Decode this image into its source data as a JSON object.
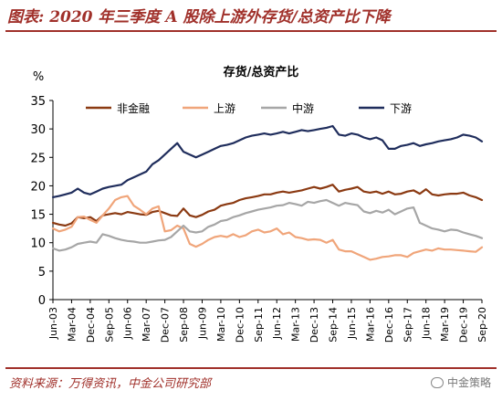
{
  "header": {
    "title": "图表: 2020 年三季度 A 股除上游外存货/总资产比下降"
  },
  "footer": {
    "source": "资料来源：万得资讯，中金公司研究部",
    "brand": "中金策略"
  },
  "icons": {
    "brand": "wechat-icon"
  },
  "colors": {
    "accent": "#a0302a"
  },
  "chart_data": {
    "type": "line",
    "title": "存货/总资产比",
    "ylabel": "%",
    "ylim": [
      0,
      35
    ],
    "yticks": [
      0,
      5,
      10,
      15,
      20,
      25,
      30,
      35
    ],
    "grid": false,
    "legend_position": "top",
    "x_tick_labels": [
      "Jun-03",
      "Mar-04",
      "Dec-04",
      "Sep-05",
      "Jun-06",
      "Mar-07",
      "Dec-07",
      "Sep-08",
      "Jun-09",
      "Mar-10",
      "Dec-10",
      "Sep-11",
      "Jun-12",
      "Mar-13",
      "Dec-13",
      "Sep-14",
      "Jun-15",
      "Mar-16",
      "Dec-16",
      "Sep-17",
      "Jun-18",
      "Mar-19",
      "Dec-19",
      "Sep-20"
    ],
    "x": [
      "Jun-03",
      "Sep-03",
      "Dec-03",
      "Mar-04",
      "Jun-04",
      "Sep-04",
      "Dec-04",
      "Mar-05",
      "Jun-05",
      "Sep-05",
      "Dec-05",
      "Mar-06",
      "Jun-06",
      "Sep-06",
      "Dec-06",
      "Mar-07",
      "Jun-07",
      "Sep-07",
      "Dec-07",
      "Mar-08",
      "Jun-08",
      "Sep-08",
      "Dec-08",
      "Mar-09",
      "Jun-09",
      "Sep-09",
      "Dec-09",
      "Mar-10",
      "Jun-10",
      "Sep-10",
      "Dec-10",
      "Mar-11",
      "Jun-11",
      "Sep-11",
      "Dec-11",
      "Mar-12",
      "Jun-12",
      "Sep-12",
      "Dec-12",
      "Mar-13",
      "Jun-13",
      "Sep-13",
      "Dec-13",
      "Mar-14",
      "Jun-14",
      "Sep-14",
      "Dec-14",
      "Mar-15",
      "Jun-15",
      "Sep-15",
      "Dec-15",
      "Mar-16",
      "Jun-16",
      "Sep-16",
      "Dec-16",
      "Mar-17",
      "Jun-17",
      "Sep-17",
      "Dec-17",
      "Mar-18",
      "Jun-18",
      "Sep-18",
      "Dec-18",
      "Mar-19",
      "Jun-19",
      "Sep-19",
      "Dec-19",
      "Mar-20",
      "Jun-20",
      "Sep-20"
    ],
    "series": [
      {
        "name": "非金融",
        "color": "#8b3a12",
        "values": [
          13.5,
          13.2,
          13.0,
          13.4,
          14.5,
          14.3,
          14.5,
          13.8,
          14.8,
          15.0,
          15.2,
          15.0,
          15.4,
          15.2,
          15.0,
          14.9,
          15.4,
          15.6,
          15.2,
          14.8,
          14.7,
          16.0,
          14.8,
          14.5,
          14.9,
          15.5,
          15.8,
          16.5,
          16.8,
          17.0,
          17.5,
          17.8,
          18.0,
          18.2,
          18.5,
          18.5,
          18.8,
          19.0,
          18.8,
          19.0,
          19.2,
          19.5,
          19.8,
          19.5,
          19.8,
          20.2,
          19.0,
          19.3,
          19.5,
          19.8,
          19.0,
          18.8,
          19.0,
          18.6,
          19.0,
          18.5,
          18.6,
          19.0,
          19.2,
          18.6,
          19.4,
          18.5,
          18.3,
          18.5,
          18.6,
          18.6,
          18.8,
          18.3,
          18.0,
          17.5
        ]
      },
      {
        "name": "上游",
        "color": "#f0a57a",
        "values": [
          12.5,
          12.0,
          12.3,
          12.8,
          14.5,
          14.6,
          14.0,
          13.5,
          14.8,
          16.0,
          17.5,
          18.0,
          18.2,
          16.5,
          15.8,
          15.0,
          16.0,
          16.4,
          12.0,
          12.2,
          13.0,
          12.5,
          9.8,
          9.3,
          9.8,
          10.5,
          11.0,
          11.2,
          11.0,
          11.5,
          11.0,
          11.3,
          12.0,
          12.3,
          11.8,
          12.0,
          12.5,
          11.5,
          11.8,
          11.0,
          10.8,
          10.5,
          10.6,
          10.5,
          10.0,
          10.5,
          8.8,
          8.5,
          8.5,
          8.0,
          7.5,
          7.0,
          7.2,
          7.5,
          7.6,
          7.8,
          7.8,
          7.5,
          8.2,
          8.5,
          8.8,
          8.6,
          9.0,
          8.8,
          8.8,
          8.7,
          8.6,
          8.5,
          8.4,
          9.2
        ]
      },
      {
        "name": "中游",
        "color": "#a6a6a6",
        "values": [
          9.0,
          8.6,
          8.8,
          9.2,
          9.8,
          10.0,
          10.2,
          10.0,
          11.5,
          11.2,
          10.8,
          10.5,
          10.3,
          10.2,
          10.0,
          10.0,
          10.2,
          10.4,
          10.5,
          11.0,
          12.0,
          13.0,
          12.0,
          11.8,
          12.0,
          12.8,
          13.2,
          13.8,
          14.0,
          14.5,
          14.8,
          15.2,
          15.5,
          15.8,
          16.0,
          16.2,
          16.5,
          16.6,
          17.0,
          16.8,
          16.5,
          17.2,
          17.0,
          17.3,
          17.5,
          17.0,
          16.5,
          17.0,
          16.8,
          16.6,
          15.5,
          15.2,
          15.6,
          15.3,
          15.8,
          15.0,
          15.5,
          16.0,
          16.2,
          13.5,
          13.0,
          12.5,
          12.3,
          12.0,
          12.3,
          12.2,
          11.8,
          11.5,
          11.2,
          10.8
        ]
      },
      {
        "name": "下游",
        "color": "#1f2d5c",
        "values": [
          18.0,
          18.2,
          18.5,
          18.8,
          19.5,
          18.8,
          18.5,
          19.0,
          19.5,
          19.8,
          20.0,
          20.2,
          21.0,
          21.5,
          22.0,
          22.5,
          23.8,
          24.5,
          25.5,
          26.5,
          27.5,
          26.0,
          25.5,
          25.0,
          25.5,
          26.0,
          26.5,
          27.0,
          27.2,
          27.5,
          28.0,
          28.5,
          28.8,
          29.0,
          29.2,
          29.0,
          29.2,
          29.5,
          29.2,
          29.5,
          29.8,
          29.6,
          29.8,
          30.0,
          30.2,
          30.5,
          29.0,
          28.8,
          29.2,
          29.0,
          28.5,
          28.2,
          28.5,
          28.0,
          26.5,
          26.5,
          27.0,
          27.2,
          27.5,
          27.0,
          27.3,
          27.5,
          27.8,
          28.0,
          28.2,
          28.5,
          29.0,
          28.8,
          28.5,
          27.8
        ]
      }
    ]
  }
}
